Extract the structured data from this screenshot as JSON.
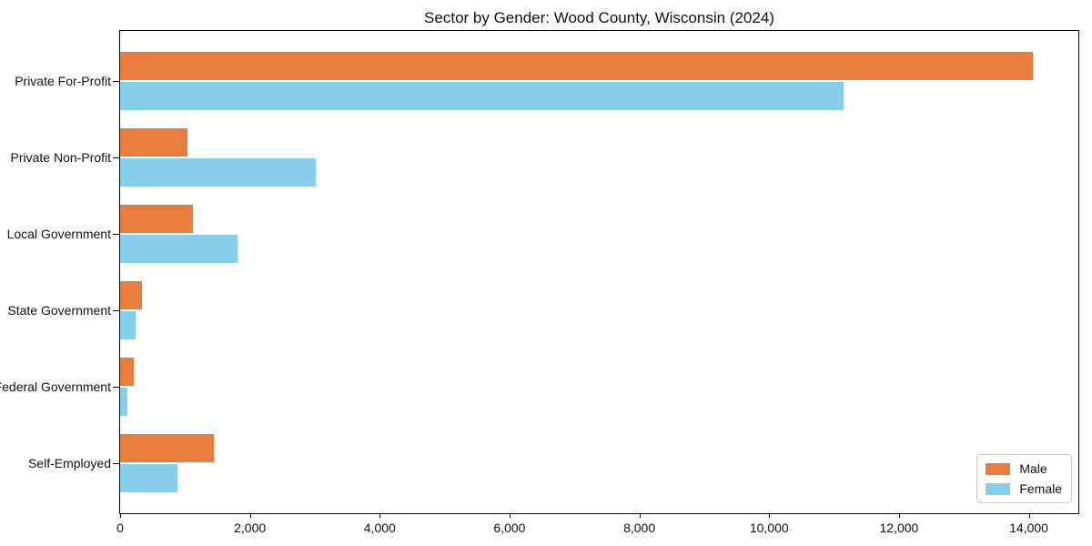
{
  "chart_data": {
    "type": "bar",
    "orientation": "horizontal",
    "title": "Sector by Gender: Wood County, Wisconsin (2024)",
    "categories": [
      "Private For-Profit",
      "Private Non-Profit",
      "Local Government",
      "State Government",
      "Federal Government",
      "Self-Employed"
    ],
    "series": [
      {
        "name": "Male",
        "color": "#e87d3e",
        "values": [
          14060,
          1040,
          1115,
          335,
          215,
          1450
        ]
      },
      {
        "name": "Female",
        "color": "#87ceeb",
        "values": [
          11140,
          3020,
          1805,
          235,
          110,
          880
        ]
      }
    ],
    "xlim": [
      0,
      14763
    ],
    "x_ticks": [
      0,
      2000,
      4000,
      6000,
      8000,
      10000,
      12000,
      14000
    ],
    "x_tick_labels": [
      "0",
      "2,000",
      "4,000",
      "6,000",
      "8,000",
      "10,000",
      "12,000",
      "14,000"
    ],
    "xlabel": "",
    "ylabel": "",
    "grid": false,
    "legend_position": "lower right"
  }
}
